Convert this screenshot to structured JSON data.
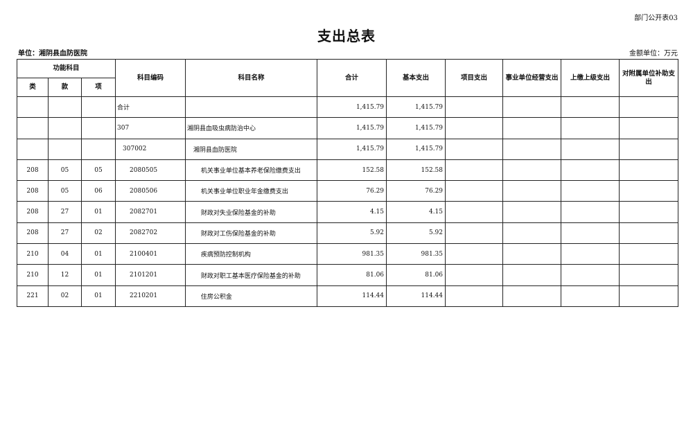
{
  "header": {
    "code": "部门公开表03",
    "title": "支出总表",
    "unit": "单位：湘阴县血防医院",
    "amount_unit": "金额单位：万元"
  },
  "table": {
    "group_header": "功能科目",
    "columns": [
      "类",
      "款",
      "项",
      "科目编码",
      "科目名称",
      "合计",
      "基本支出",
      "项目支出",
      "事业单位经营支出",
      "上缴上级支出",
      "对附属单位补助支出"
    ],
    "rows": [
      [
        null,
        null,
        null,
        "合计",
        null,
        "1,415.79",
        "1,415.79",
        null,
        null,
        null,
        null
      ],
      [
        null,
        null,
        null,
        "307",
        "湘阴县血吸虫病防治中心",
        "1,415.79",
        "1,415.79",
        null,
        null,
        null,
        null
      ],
      [
        null,
        null,
        null,
        "307002",
        "湘阴县血防医院",
        "1,415.79",
        "1,415.79",
        null,
        null,
        null,
        null
      ],
      [
        "208",
        "05",
        "05",
        "2080505",
        "机关事业单位基本养老保险缴费支出",
        "152.58",
        "152.58",
        null,
        null,
        null,
        null
      ],
      [
        "208",
        "05",
        "06",
        "2080506",
        "机关事业单位职业年金缴费支出",
        "76.29",
        "76.29",
        null,
        null,
        null,
        null
      ],
      [
        "208",
        "27",
        "01",
        "2082701",
        "财政对失业保险基金的补助",
        "4.15",
        "4.15",
        null,
        null,
        null,
        null
      ],
      [
        "208",
        "27",
        "02",
        "2082702",
        "财政对工伤保险基金的补助",
        "5.92",
        "5.92",
        null,
        null,
        null,
        null
      ],
      [
        "210",
        "04",
        "01",
        "2100401",
        "疾病预防控制机构",
        "981.35",
        "981.35",
        null,
        null,
        null,
        null
      ],
      [
        "210",
        "12",
        "01",
        "2101201",
        "财政对职工基本医疗保险基金的补助",
        "81.06",
        "81.06",
        null,
        null,
        null,
        null
      ],
      [
        "221",
        "02",
        "01",
        "2210201",
        "住房公积金",
        "114.44",
        "114.44",
        null,
        null,
        null,
        null
      ]
    ]
  }
}
